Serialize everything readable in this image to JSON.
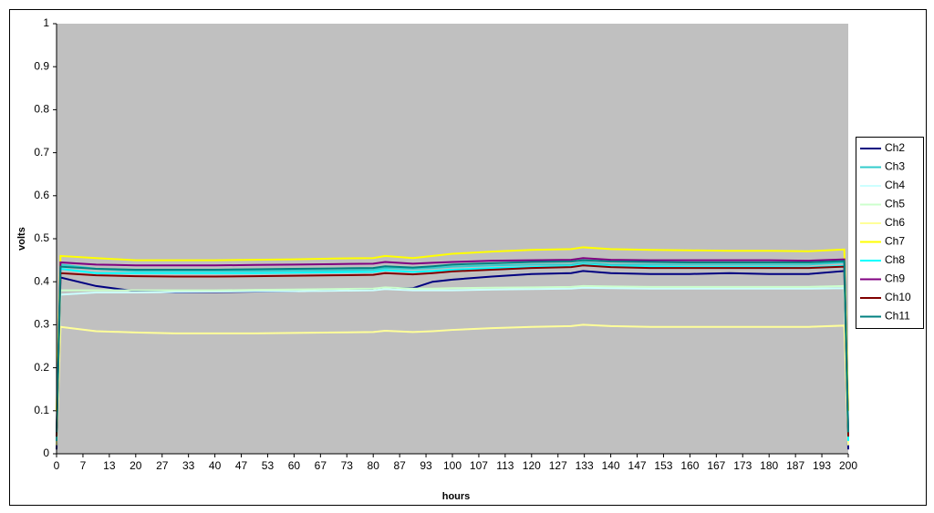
{
  "chart_data": {
    "type": "line",
    "xlabel": "hours",
    "ylabel": "volts",
    "x": [
      0,
      1,
      10,
      20,
      30,
      40,
      50,
      60,
      70,
      80,
      83,
      90,
      95,
      100,
      110,
      120,
      130,
      133,
      140,
      150,
      160,
      170,
      180,
      190,
      199,
      200
    ],
    "xlim": [
      0,
      200
    ],
    "xticks": [
      0,
      {
        "value": 6.67,
        "label": "7"
      },
      {
        "value": 13.33,
        "label": "13"
      },
      20,
      {
        "value": 26.67,
        "label": "27"
      },
      {
        "value": 33.33,
        "label": "33"
      },
      40,
      {
        "value": 46.67,
        "label": "47"
      },
      {
        "value": 53.33,
        "label": "53"
      },
      60,
      {
        "value": 66.67,
        "label": "67"
      },
      {
        "value": 73.33,
        "label": "73"
      },
      80,
      {
        "value": 86.67,
        "label": "87"
      },
      {
        "value": 93.33,
        "label": "93"
      },
      100,
      {
        "value": 106.67,
        "label": "107"
      },
      {
        "value": 113.33,
        "label": "113"
      },
      120,
      {
        "value": 126.67,
        "label": "127"
      },
      {
        "value": 133.33,
        "label": "133"
      },
      140,
      {
        "value": 146.67,
        "label": "147"
      },
      {
        "value": 153.33,
        "label": "153"
      },
      160,
      {
        "value": 166.67,
        "label": "167"
      },
      {
        "value": 173.33,
        "label": "173"
      },
      180,
      {
        "value": 186.67,
        "label": "187"
      },
      {
        "value": 193.33,
        "label": "193"
      },
      200
    ],
    "ylim": [
      0,
      1
    ],
    "yticks": [
      0,
      0.1,
      0.2,
      0.3,
      0.4,
      0.5,
      0.6,
      0.7,
      0.8,
      0.9,
      1
    ],
    "grid": false,
    "legend": "right",
    "background": "#c0c0c0",
    "series": [
      {
        "name": "Ch2",
        "color": "#000080",
        "values": [
          0.01,
          0.41,
          0.39,
          0.378,
          0.375,
          0.376,
          0.377,
          0.378,
          0.38,
          0.382,
          0.385,
          0.385,
          0.4,
          0.405,
          0.412,
          0.418,
          0.42,
          0.425,
          0.42,
          0.418,
          0.418,
          0.42,
          0.418,
          0.418,
          0.425,
          0.01
        ]
      },
      {
        "name": "Ch3",
        "color": "#33cccc",
        "values": [
          0.02,
          0.44,
          0.43,
          0.425,
          0.425,
          0.425,
          0.425,
          0.426,
          0.426,
          0.428,
          0.432,
          0.43,
          0.432,
          0.435,
          0.438,
          0.44,
          0.44,
          0.445,
          0.44,
          0.44,
          0.44,
          0.44,
          0.44,
          0.44,
          0.445,
          0.02
        ]
      },
      {
        "name": "Ch4",
        "color": "#ccffff",
        "values": [
          0.02,
          0.37,
          0.375,
          0.375,
          0.376,
          0.377,
          0.378,
          0.378,
          0.379,
          0.38,
          0.383,
          0.38,
          0.38,
          0.38,
          0.382,
          0.383,
          0.384,
          0.386,
          0.385,
          0.384,
          0.384,
          0.384,
          0.384,
          0.384,
          0.385,
          0.02
        ]
      },
      {
        "name": "Ch5",
        "color": "#ccffcc",
        "values": [
          0.02,
          0.38,
          0.38,
          0.38,
          0.38,
          0.38,
          0.381,
          0.382,
          0.383,
          0.384,
          0.387,
          0.384,
          0.384,
          0.385,
          0.386,
          0.387,
          0.388,
          0.39,
          0.389,
          0.388,
          0.388,
          0.388,
          0.388,
          0.388,
          0.39,
          0.02
        ]
      },
      {
        "name": "Ch6",
        "color": "#ffff99",
        "values": [
          0.02,
          0.295,
          0.285,
          0.282,
          0.28,
          0.28,
          0.28,
          0.281,
          0.282,
          0.283,
          0.286,
          0.283,
          0.285,
          0.288,
          0.292,
          0.295,
          0.297,
          0.3,
          0.297,
          0.295,
          0.295,
          0.295,
          0.295,
          0.295,
          0.298,
          0.02
        ]
      },
      {
        "name": "Ch7",
        "color": "#ffff00",
        "values": [
          0.1,
          0.46,
          0.455,
          0.45,
          0.45,
          0.45,
          0.451,
          0.452,
          0.454,
          0.455,
          0.46,
          0.455,
          0.46,
          0.465,
          0.47,
          0.474,
          0.476,
          0.48,
          0.476,
          0.474,
          0.473,
          0.472,
          0.472,
          0.471,
          0.475,
          0.1
        ]
      },
      {
        "name": "Ch8",
        "color": "#00ffff",
        "values": [
          0.03,
          0.43,
          0.42,
          0.42,
          0.42,
          0.42,
          0.42,
          0.421,
          0.422,
          0.423,
          0.427,
          0.423,
          0.425,
          0.428,
          0.432,
          0.434,
          0.436,
          0.44,
          0.436,
          0.435,
          0.434,
          0.434,
          0.434,
          0.433,
          0.437,
          0.03
        ]
      },
      {
        "name": "Ch9",
        "color": "#800080",
        "values": [
          0.05,
          0.445,
          0.44,
          0.438,
          0.438,
          0.438,
          0.439,
          0.44,
          0.441,
          0.442,
          0.446,
          0.442,
          0.444,
          0.446,
          0.449,
          0.45,
          0.451,
          0.455,
          0.451,
          0.45,
          0.45,
          0.45,
          0.45,
          0.449,
          0.452,
          0.05
        ]
      },
      {
        "name": "Ch10",
        "color": "#800000",
        "values": [
          0.04,
          0.42,
          0.415,
          0.413,
          0.412,
          0.412,
          0.413,
          0.414,
          0.415,
          0.416,
          0.42,
          0.417,
          0.42,
          0.424,
          0.428,
          0.432,
          0.434,
          0.438,
          0.434,
          0.432,
          0.432,
          0.432,
          0.432,
          0.432,
          0.435,
          0.04
        ]
      },
      {
        "name": "Ch11",
        "color": "#008080",
        "values": [
          0.05,
          0.435,
          0.43,
          0.428,
          0.428,
          0.428,
          0.429,
          0.43,
          0.431,
          0.432,
          0.436,
          0.433,
          0.436,
          0.44,
          0.443,
          0.446,
          0.447,
          0.45,
          0.447,
          0.446,
          0.445,
          0.445,
          0.445,
          0.445,
          0.448,
          0.05
        ]
      }
    ]
  }
}
